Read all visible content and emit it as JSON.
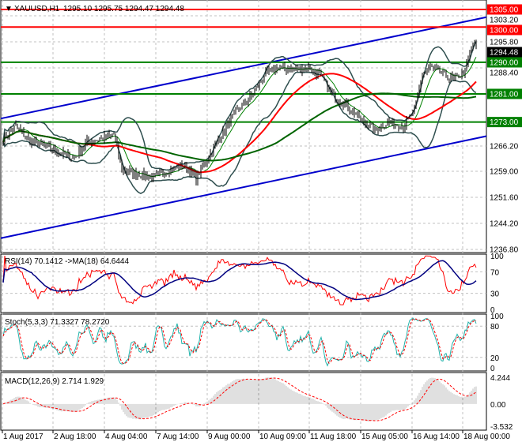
{
  "header": {
    "symbol": "XAUUSD,H1",
    "ohlc": "1295.10 1295.75 1294.47 1294.48"
  },
  "chart_data": [
    {
      "type": "candlestick",
      "title": "XAUUSD,H1",
      "price_axis": [
        "1303.20",
        "1295.80",
        "1288.40",
        "1266.20",
        "1259.00",
        "1251.60",
        "1244.20",
        "1236.80"
      ],
      "ylim": [
        1236.8,
        1305.5
      ],
      "last_price": "1294.48",
      "levels": [
        {
          "label": "1305.00",
          "value": 1305,
          "color": "#ff0000"
        },
        {
          "label": "1300.00",
          "value": 1300,
          "color": "#ff0000"
        },
        {
          "label": "1290.00",
          "value": 1290,
          "color": "#008000"
        },
        {
          "label": "1281.00",
          "value": 1281,
          "color": "#008000"
        },
        {
          "label": "1273.00",
          "value": 1273,
          "color": "#008000"
        }
      ],
      "channel": {
        "color": "#0000cc",
        "upper": [
          1274.0,
          1302.8
        ],
        "lower": [
          1240.0,
          1269.0
        ]
      },
      "close_anchors": [
        [
          0,
          1268.4
        ],
        [
          8,
          1271.8
        ],
        [
          18,
          1267.3
        ],
        [
          28,
          1266.2
        ],
        [
          38,
          1263.9
        ],
        [
          45,
          1262.8
        ],
        [
          53,
          1267.3
        ],
        [
          63,
          1268.4
        ],
        [
          70,
          1269.6
        ],
        [
          75,
          1259.5
        ],
        [
          85,
          1258.3
        ],
        [
          95,
          1257.2
        ],
        [
          105,
          1259.5
        ],
        [
          115,
          1260.6
        ],
        [
          122,
          1257.2
        ],
        [
          128,
          1261.7
        ],
        [
          138,
          1269.6
        ],
        [
          148,
          1276.3
        ],
        [
          158,
          1280.8
        ],
        [
          165,
          1286.4
        ],
        [
          173,
          1288.6
        ],
        [
          183,
          1287.9
        ],
        [
          193,
          1288.6
        ],
        [
          200,
          1286.4
        ],
        [
          208,
          1280.8
        ],
        [
          218,
          1277.4
        ],
        [
          228,
          1272.9
        ],
        [
          235,
          1270.7
        ],
        [
          243,
          1272.9
        ],
        [
          253,
          1271.8
        ],
        [
          260,
          1276.3
        ],
        [
          265,
          1286.4
        ],
        [
          270,
          1288.6
        ],
        [
          278,
          1286.4
        ],
        [
          285,
          1285.2
        ],
        [
          292,
          1287.5
        ],
        [
          297,
          1295.3
        ],
        [
          299,
          1294.48
        ]
      ],
      "time_labels": [
        "1 Aug 2017",
        "2 Aug 18:00",
        "4 Aug 04:00",
        "7 Aug 14:00",
        "9 Aug 00:00",
        "10 Aug 09:00",
        "11 Aug 18:00",
        "15 Aug 05:00",
        "16 Aug 14:00",
        "18 Aug 00:00"
      ]
    },
    {
      "type": "line",
      "title": "RSI(14) 70.1412  ->MA(18) 64.6444",
      "axis": [
        "100",
        "70",
        "30",
        "0"
      ],
      "ylim": [
        0,
        100
      ],
      "colors": {
        "rsi": "#ff0000",
        "ma": "#000080"
      }
    },
    {
      "type": "line",
      "title": "Stoch(5,3,3) 71.3327 78.2720",
      "axis": [
        "100",
        "80",
        "20",
        "0"
      ],
      "ylim": [
        0,
        100
      ],
      "colors": {
        "main": "#20b2aa",
        "signal": "#ff0000"
      }
    },
    {
      "type": "bar",
      "title": "MACD(12,26,9) 2.714 1.929",
      "axis": [
        "4.244",
        "0.00",
        "-3.532"
      ],
      "ylim": [
        -3.532,
        4.244
      ],
      "colors": {
        "hist": "#c0c0c0",
        "signal": "#ff0000"
      }
    }
  ]
}
